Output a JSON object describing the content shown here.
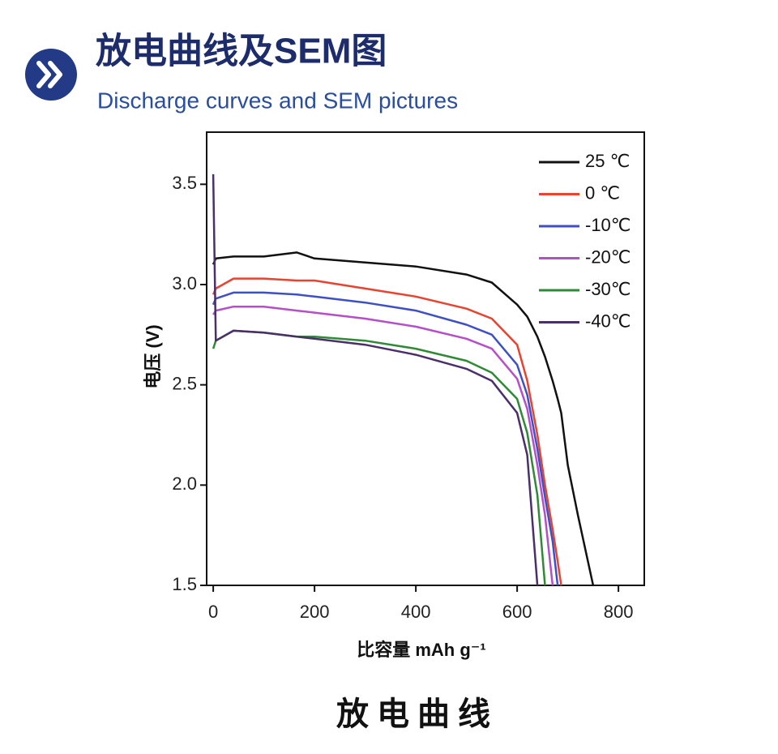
{
  "header": {
    "title": "放电曲线及SEM图",
    "subtitle": "Discharge curves and SEM pictures"
  },
  "caption": "放电曲线",
  "chart_data": {
    "type": "line",
    "xlabel": "比容量  mAh g⁻¹",
    "ylabel": "电压 (V)",
    "x": [
      0,
      5,
      40,
      100,
      165,
      200,
      300,
      400,
      500,
      550,
      600,
      620,
      640,
      655,
      670,
      680,
      687,
      700,
      720,
      750
    ],
    "series": [
      {
        "name": "25 ℃",
        "color": "#111111",
        "values": [
          3.1,
          3.13,
          3.14,
          3.14,
          3.16,
          3.13,
          3.11,
          3.09,
          3.05,
          3.01,
          2.9,
          2.84,
          2.74,
          2.64,
          2.52,
          2.43,
          2.36,
          2.1,
          1.85,
          1.5
        ]
      },
      {
        "name": "0 ℃",
        "color": "#e8432f",
        "values": [
          2.95,
          2.98,
          3.03,
          3.03,
          3.02,
          3.02,
          2.98,
          2.94,
          2.88,
          2.83,
          2.7,
          2.52,
          2.25,
          2.0,
          1.78,
          1.62,
          1.5,
          null,
          null,
          null
        ]
      },
      {
        "name": "-10℃",
        "color": "#3f4fc4",
        "values": [
          2.9,
          2.93,
          2.96,
          2.96,
          2.95,
          2.94,
          2.91,
          2.87,
          2.8,
          2.75,
          2.6,
          2.45,
          2.18,
          1.94,
          1.72,
          1.5,
          null,
          null,
          null,
          null
        ]
      },
      {
        "name": "-20℃",
        "color": "#b44fc8",
        "values": [
          2.85,
          2.87,
          2.89,
          2.89,
          2.87,
          2.86,
          2.83,
          2.79,
          2.73,
          2.68,
          2.53,
          2.38,
          2.1,
          1.85,
          1.5,
          null,
          null,
          null,
          null,
          null
        ]
      },
      {
        "name": "-30℃",
        "color": "#2f8a35",
        "values": [
          2.68,
          2.72,
          2.77,
          2.76,
          2.74,
          2.74,
          2.72,
          2.68,
          2.62,
          2.56,
          2.43,
          2.26,
          1.95,
          1.5,
          null,
          null,
          null,
          null,
          null,
          null
        ]
      },
      {
        "name": "-40℃",
        "color": "#4a2f6a",
        "values": [
          3.55,
          2.72,
          2.77,
          2.76,
          2.74,
          2.73,
          2.7,
          2.65,
          2.58,
          2.52,
          2.36,
          2.15,
          1.5,
          null,
          null,
          null,
          null,
          null,
          null,
          null
        ]
      }
    ],
    "xlim": [
      -13,
      851
    ],
    "ylim": [
      1.5,
      3.76
    ],
    "xticks": [
      0,
      200,
      400,
      600,
      800
    ],
    "yticks": [
      {
        "value": 1.5,
        "label": "1.5"
      },
      {
        "value": 2,
        "label": "2.0"
      },
      {
        "value": 2.5,
        "label": "2.5"
      },
      {
        "value": 3,
        "label": "3.0"
      },
      {
        "value": 3.5,
        "label": "3.5"
      }
    ],
    "legend": "upper right"
  }
}
